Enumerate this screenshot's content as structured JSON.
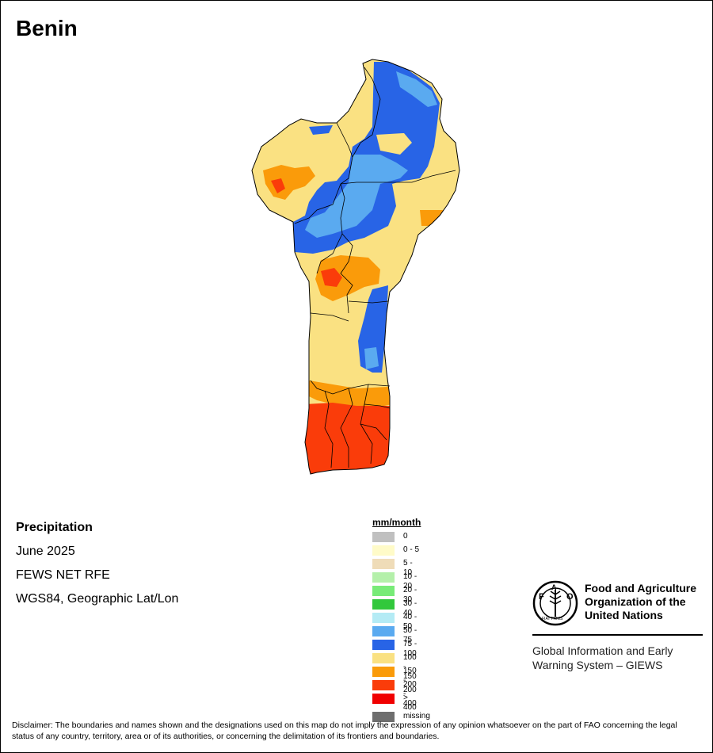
{
  "title": "Benin",
  "info": {
    "variable": "Precipitation",
    "period": "June 2025",
    "source": "FEWS NET RFE",
    "projection": "WGS84, Geographic Lat/Lon"
  },
  "legend": {
    "title": "mm/month",
    "items": [
      {
        "label": "0",
        "color": "#c0c0c0"
      },
      {
        "label": "0 - 5",
        "color": "#fffbc8"
      },
      {
        "label": "5 - 10",
        "color": "#efdcb8"
      },
      {
        "label": "10 - 20",
        "color": "#b4f0aa"
      },
      {
        "label": "20 - 30",
        "color": "#78eb78"
      },
      {
        "label": "30 - 40",
        "color": "#32c83c"
      },
      {
        "label": "40 - 50",
        "color": "#b4ebf5"
      },
      {
        "label": "50 - 75",
        "color": "#5aaaf0"
      },
      {
        "label": "75 - 100",
        "color": "#2864e6"
      },
      {
        "label": "100 - 150",
        "color": "#fae182"
      },
      {
        "label": "150 - 200",
        "color": "#fa9b0a"
      },
      {
        "label": "200 - 400",
        "color": "#fa3c0a"
      },
      {
        "label": "> 400",
        "color": "#f00000"
      },
      {
        "label": "missing",
        "color": "#6e6e6e"
      }
    ]
  },
  "fao": {
    "org_name": "Food and Agriculture\nOrganization of the\nUnited Nations",
    "logo_text": "FAO",
    "logo_motto": "FIAT PANIS",
    "system_name": "Global Information and Early\nWarning System – GIEWS"
  },
  "disclaimer": "Disclaimer: The boundaries and names shown and the designations used on this map do not imply the expression of any opinion whatsoever on the part of FAO concerning the legal status of any country, territory, area or of its authorities, or concerning the delimitation of its frontiers and boundaries."
}
